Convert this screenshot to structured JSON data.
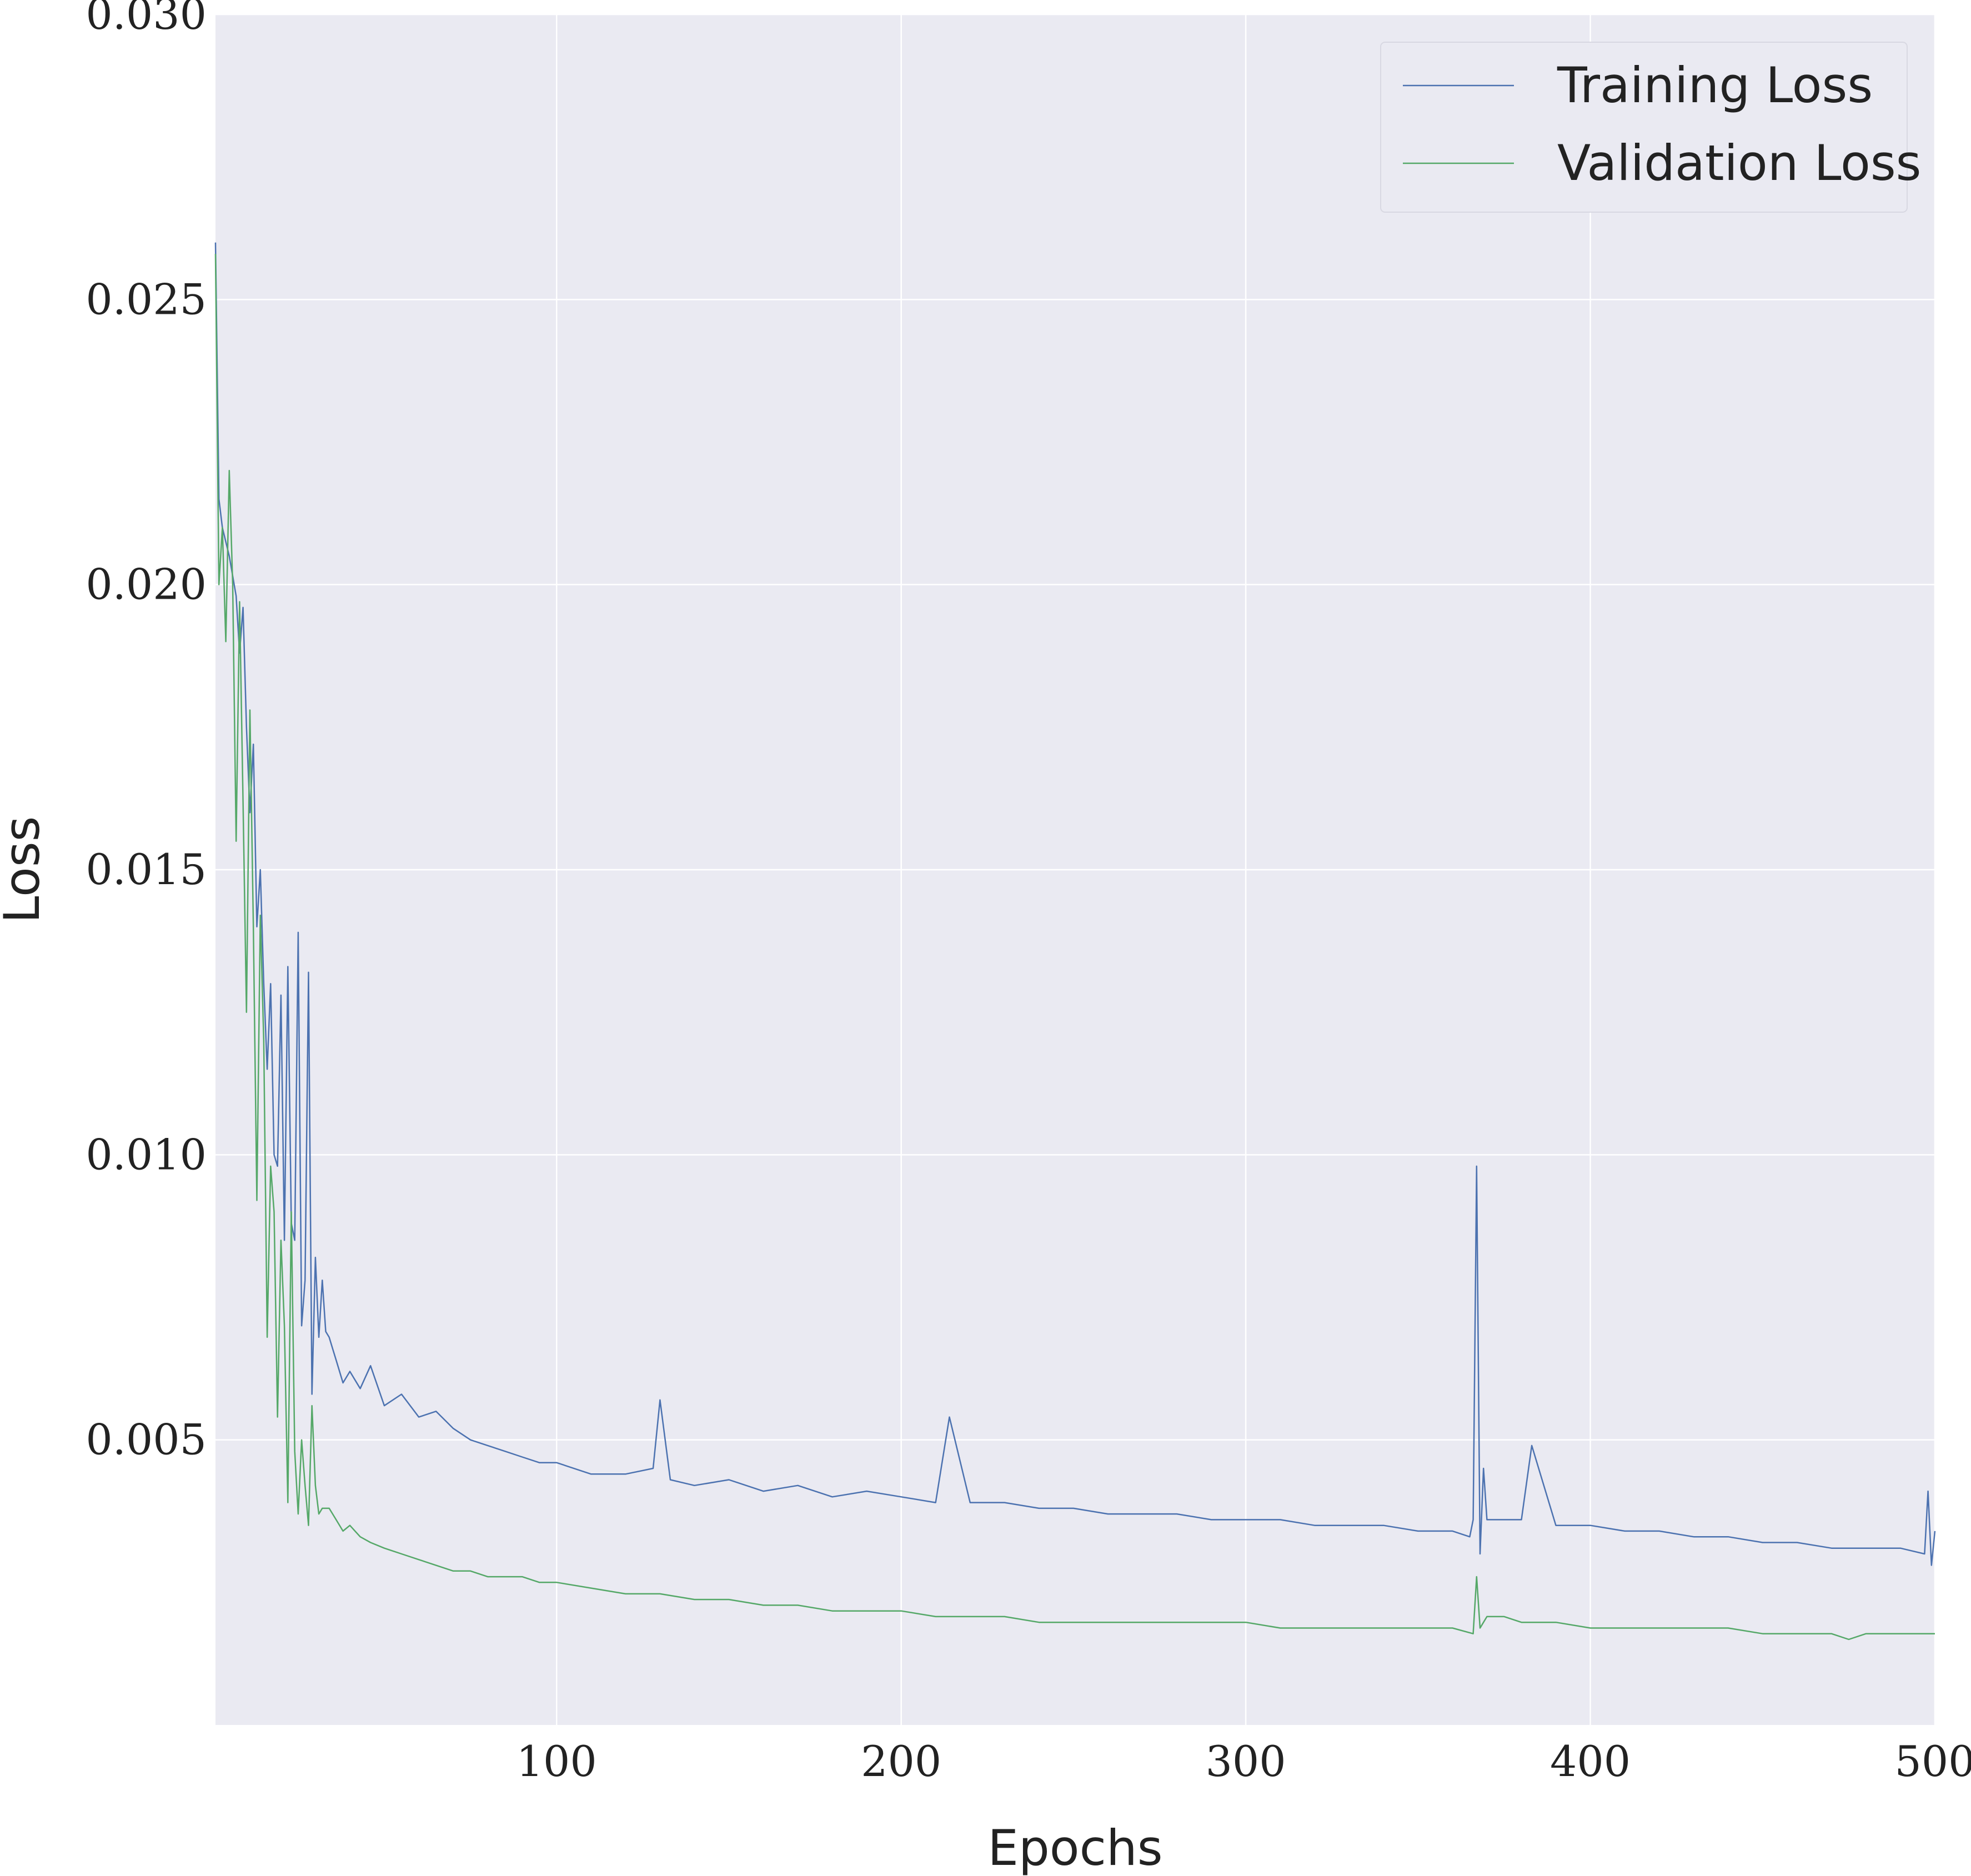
{
  "chart_data": {
    "type": "line",
    "title": "",
    "xlabel": "Epochs",
    "ylabel": "Loss",
    "xlim": [
      1,
      500
    ],
    "ylim": [
      0.0,
      0.03
    ],
    "x_ticks": [
      100,
      200,
      300,
      400,
      500
    ],
    "y_ticks": [
      0.005,
      0.01,
      0.015,
      0.02,
      0.025,
      0.03
    ],
    "x_tick_labels": [
      "100",
      "200",
      "300",
      "400",
      "500"
    ],
    "y_tick_labels": [
      "0.005",
      "0.010",
      "0.015",
      "0.020",
      "0.025",
      "0.030"
    ],
    "grid": true,
    "legend_position": "top-right",
    "series": [
      {
        "name": "Training Loss",
        "color": "#4c72b0",
        "x": [
          1,
          2,
          3,
          5,
          7,
          8,
          9,
          10,
          11,
          12,
          13,
          14,
          15,
          16,
          17,
          18,
          19,
          20,
          21,
          22,
          23,
          24,
          25,
          26,
          27,
          28,
          29,
          30,
          31,
          32,
          33,
          34,
          35,
          36,
          38,
          40,
          43,
          46,
          50,
          55,
          60,
          65,
          70,
          75,
          80,
          85,
          90,
          95,
          100,
          110,
          120,
          128,
          130,
          133,
          140,
          150,
          160,
          170,
          180,
          190,
          200,
          210,
          214,
          220,
          230,
          240,
          250,
          260,
          270,
          280,
          290,
          300,
          310,
          320,
          330,
          340,
          350,
          360,
          365,
          366,
          367,
          368,
          369,
          370,
          375,
          380,
          383,
          390,
          400,
          410,
          420,
          430,
          440,
          450,
          460,
          470,
          480,
          490,
          497,
          498,
          499,
          500
        ],
        "y": [
          0.026,
          0.0215,
          0.021,
          0.0205,
          0.0198,
          0.0188,
          0.0196,
          0.0175,
          0.016,
          0.0172,
          0.014,
          0.015,
          0.013,
          0.0115,
          0.013,
          0.01,
          0.0098,
          0.0128,
          0.0085,
          0.0133,
          0.0088,
          0.0085,
          0.0139,
          0.007,
          0.0078,
          0.0132,
          0.0058,
          0.0082,
          0.0068,
          0.0078,
          0.0069,
          0.0068,
          0.0066,
          0.0064,
          0.006,
          0.0062,
          0.0059,
          0.0063,
          0.0056,
          0.0058,
          0.0054,
          0.0055,
          0.0052,
          0.005,
          0.0049,
          0.0048,
          0.0047,
          0.0046,
          0.0046,
          0.0044,
          0.0044,
          0.0045,
          0.0057,
          0.0043,
          0.0042,
          0.0043,
          0.0041,
          0.0042,
          0.004,
          0.0041,
          0.004,
          0.0039,
          0.0054,
          0.0039,
          0.0039,
          0.0038,
          0.0038,
          0.0037,
          0.0037,
          0.0037,
          0.0036,
          0.0036,
          0.0036,
          0.0035,
          0.0035,
          0.0035,
          0.0034,
          0.0034,
          0.0033,
          0.0036,
          0.0098,
          0.003,
          0.0045,
          0.0036,
          0.0036,
          0.0036,
          0.0049,
          0.0035,
          0.0035,
          0.0034,
          0.0034,
          0.0033,
          0.0033,
          0.0032,
          0.0032,
          0.0031,
          0.0031,
          0.0031,
          0.003,
          0.0041,
          0.0028,
          0.0034
        ]
      },
      {
        "name": "Validation Loss",
        "color": "#55a868",
        "x": [
          1,
          2,
          3,
          4,
          5,
          6,
          7,
          8,
          9,
          10,
          11,
          12,
          13,
          14,
          15,
          16,
          17,
          18,
          19,
          20,
          21,
          22,
          23,
          24,
          25,
          26,
          27,
          28,
          29,
          30,
          31,
          32,
          34,
          36,
          38,
          40,
          43,
          46,
          50,
          55,
          60,
          65,
          70,
          75,
          80,
          85,
          90,
          95,
          100,
          110,
          120,
          130,
          140,
          150,
          160,
          170,
          180,
          190,
          200,
          210,
          220,
          230,
          240,
          250,
          260,
          270,
          280,
          290,
          300,
          310,
          320,
          330,
          340,
          350,
          360,
          366,
          367,
          368,
          370,
          375,
          380,
          390,
          400,
          410,
          420,
          430,
          440,
          450,
          460,
          470,
          475,
          480,
          490,
          500
        ],
        "y": [
          0.0258,
          0.02,
          0.021,
          0.019,
          0.022,
          0.02,
          0.0155,
          0.0197,
          0.0162,
          0.0125,
          0.0178,
          0.014,
          0.0092,
          0.0142,
          0.012,
          0.0068,
          0.0098,
          0.009,
          0.0054,
          0.0085,
          0.007,
          0.0039,
          0.009,
          0.0048,
          0.0037,
          0.005,
          0.0042,
          0.0035,
          0.0056,
          0.0042,
          0.0037,
          0.0038,
          0.0038,
          0.0036,
          0.0034,
          0.0035,
          0.0033,
          0.0032,
          0.0031,
          0.003,
          0.0029,
          0.0028,
          0.0027,
          0.0027,
          0.0026,
          0.0026,
          0.0026,
          0.0025,
          0.0025,
          0.0024,
          0.0023,
          0.0023,
          0.0022,
          0.0022,
          0.0021,
          0.0021,
          0.002,
          0.002,
          0.002,
          0.0019,
          0.0019,
          0.0019,
          0.0018,
          0.0018,
          0.0018,
          0.0018,
          0.0018,
          0.0018,
          0.0018,
          0.0017,
          0.0017,
          0.0017,
          0.0017,
          0.0017,
          0.0017,
          0.0016,
          0.0026,
          0.0017,
          0.0019,
          0.0019,
          0.0018,
          0.0018,
          0.0017,
          0.0017,
          0.0017,
          0.0017,
          0.0017,
          0.0016,
          0.0016,
          0.0016,
          0.0015,
          0.0016,
          0.0016,
          0.0016
        ]
      }
    ]
  }
}
